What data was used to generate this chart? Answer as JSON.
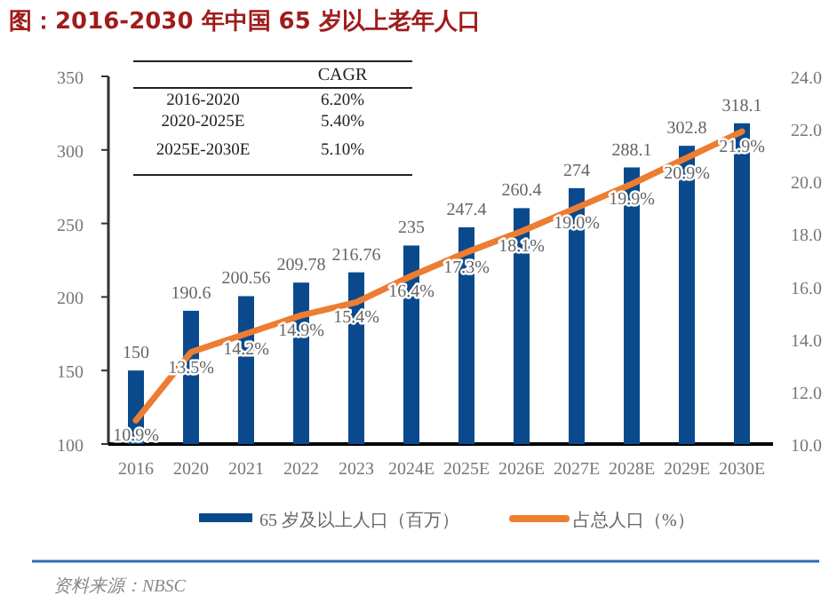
{
  "chart_data": {
    "type": "bar",
    "title": "图：2016-2030 年中国 65 岁以上老年人口",
    "categories": [
      "2016",
      "2020",
      "2021",
      "2022",
      "2023",
      "2024E",
      "2025E",
      "2026E",
      "2027E",
      "2028E",
      "2029E",
      "2030E"
    ],
    "series": [
      {
        "name": "65 岁及以上人口（百万）",
        "color": "#0a4a8c",
        "values": [
          150,
          190.6,
          200.56,
          209.78,
          216.76,
          235,
          247.4,
          260.4,
          274,
          288.1,
          302.8,
          318.1
        ],
        "value_labels": [
          "150",
          "190.6",
          "200.56",
          "209.78",
          "216.76",
          "235",
          "247.4",
          "260.4",
          "274",
          "288.1",
          "302.8",
          "318.1"
        ]
      },
      {
        "name": "占总人口（%）",
        "type": "line",
        "axis": "y2",
        "color": "#ed7d31",
        "values": [
          10.9,
          13.5,
          14.2,
          14.9,
          15.4,
          16.4,
          17.3,
          18.1,
          19.0,
          19.9,
          20.9,
          21.9
        ],
        "value_labels": [
          "10.9%",
          "13.5%",
          "14.2%",
          "14.9%",
          "15.4%",
          "16.4%",
          "17.3%",
          "18.1%",
          "19.0%",
          "19.9%",
          "20.9%",
          "21.9%"
        ]
      }
    ],
    "ylim": [
      100,
      350
    ],
    "yticks": [
      100,
      150,
      200,
      250,
      300,
      350
    ],
    "y2lim": [
      10,
      24
    ],
    "y2ticks": [
      {
        "value": 10,
        "label": "10.0"
      },
      {
        "value": 12,
        "label": "12.0"
      },
      {
        "value": 14,
        "label": "14.0"
      },
      {
        "value": 16,
        "label": "16.0"
      },
      {
        "value": 18,
        "label": "18.0"
      },
      {
        "value": 20,
        "label": "20.0"
      },
      {
        "value": 22,
        "label": "22.0"
      },
      {
        "value": 24,
        "label": "24.0"
      }
    ],
    "legend": "bottom",
    "grid": false,
    "annotations": [
      "CAGR",
      "2016-2020",
      "6.20%",
      "2020-2025E",
      "5.40%",
      "2025E-2030E",
      "5.10%",
      "资料来源：NBSC"
    ]
  }
}
